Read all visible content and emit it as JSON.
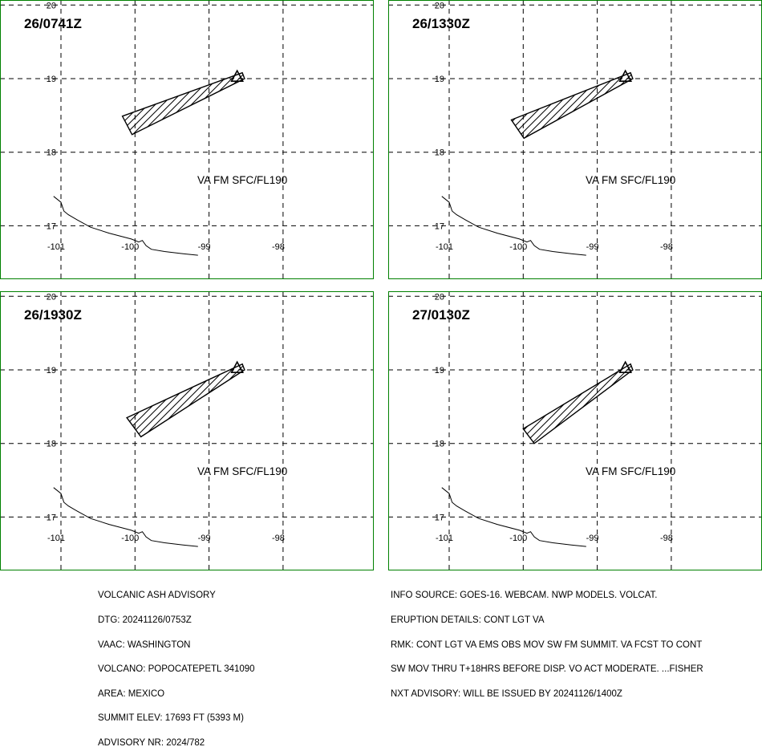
{
  "colors": {
    "panel_border": "#008000",
    "grid": "#000000",
    "ash_outline": "#000000",
    "background": "#ffffff"
  },
  "chart_data": {
    "type": "map",
    "grid": true,
    "x_ticks": [
      "-101",
      "-100",
      "-99",
      "-98"
    ],
    "y_ticks": [
      "17",
      "18",
      "19",
      "20"
    ],
    "xlim": [
      -101.1,
      -97.9
    ],
    "ylim": [
      16.8,
      20.0
    ],
    "volcano": {
      "name": "POPOCATEPETL",
      "lon": -98.62,
      "lat": 19.02,
      "icon": "volcano-triangle-icon"
    },
    "coastline": [
      [
        -101.1,
        17.4
      ],
      [
        -101.0,
        17.32
      ],
      [
        -100.96,
        17.2
      ],
      [
        -100.9,
        17.15
      ],
      [
        -100.78,
        17.08
      ],
      [
        -100.6,
        16.98
      ],
      [
        -100.35,
        16.9
      ],
      [
        -100.05,
        16.82
      ],
      [
        -99.95,
        16.78
      ],
      [
        -99.9,
        16.8
      ],
      [
        -99.85,
        16.73
      ],
      [
        -99.78,
        16.68
      ],
      [
        -99.6,
        16.65
      ],
      [
        -99.35,
        16.62
      ],
      [
        -99.15,
        16.6
      ]
    ],
    "panels": [
      {
        "time": "26/0741Z",
        "label": "VA FM SFC/FL190",
        "polygon": [
          [
            -98.55,
            19.08
          ],
          [
            -100.17,
            18.49
          ],
          [
            -100.04,
            18.24
          ],
          [
            -98.52,
            19.0
          ]
        ]
      },
      {
        "time": "26/1330Z",
        "label": "VA FM SFC/FL190",
        "polygon": [
          [
            -98.55,
            19.08
          ],
          [
            -100.16,
            18.44
          ],
          [
            -99.99,
            18.19
          ],
          [
            -98.52,
            19.0
          ]
        ]
      },
      {
        "time": "26/1930Z",
        "label": "VA FM SFC/FL190",
        "polygon": [
          [
            -98.55,
            19.08
          ],
          [
            -100.11,
            18.35
          ],
          [
            -99.92,
            18.09
          ],
          [
            -98.52,
            19.0
          ]
        ]
      },
      {
        "time": "27/0130Z",
        "label": "VA FM SFC/FL190",
        "polygon": [
          [
            -98.55,
            19.08
          ],
          [
            -100.0,
            18.2
          ],
          [
            -99.85,
            18.0
          ],
          [
            -98.52,
            19.0
          ]
        ]
      }
    ]
  },
  "advisory": {
    "left_lines": [
      "VOLCANIC ASH ADVISORY",
      "DTG: 20241126/0753Z",
      "VAAC: WASHINGTON",
      "VOLCANO: POPOCATEPETL 341090",
      "AREA: MEXICO",
      "SUMMIT ELEV: 17693 FT (5393 M)",
      "ADVISORY NR: 2024/782"
    ],
    "right_lines": [
      "INFO SOURCE: GOES-16. WEBCAM. NWP MODELS. VOLCAT.",
      "ERUPTION DETAILS: CONT LGT VA",
      "RMK: CONT LGT VA EMS OBS MOV SW FM SUMMIT. VA FCST TO CONT",
      "SW MOV THRU T+18HRS BEFORE DISP. VO ACT MODERATE. ...FISHER",
      "NXT ADVISORY: WILL BE ISSUED BY 20241126/1400Z"
    ]
  }
}
